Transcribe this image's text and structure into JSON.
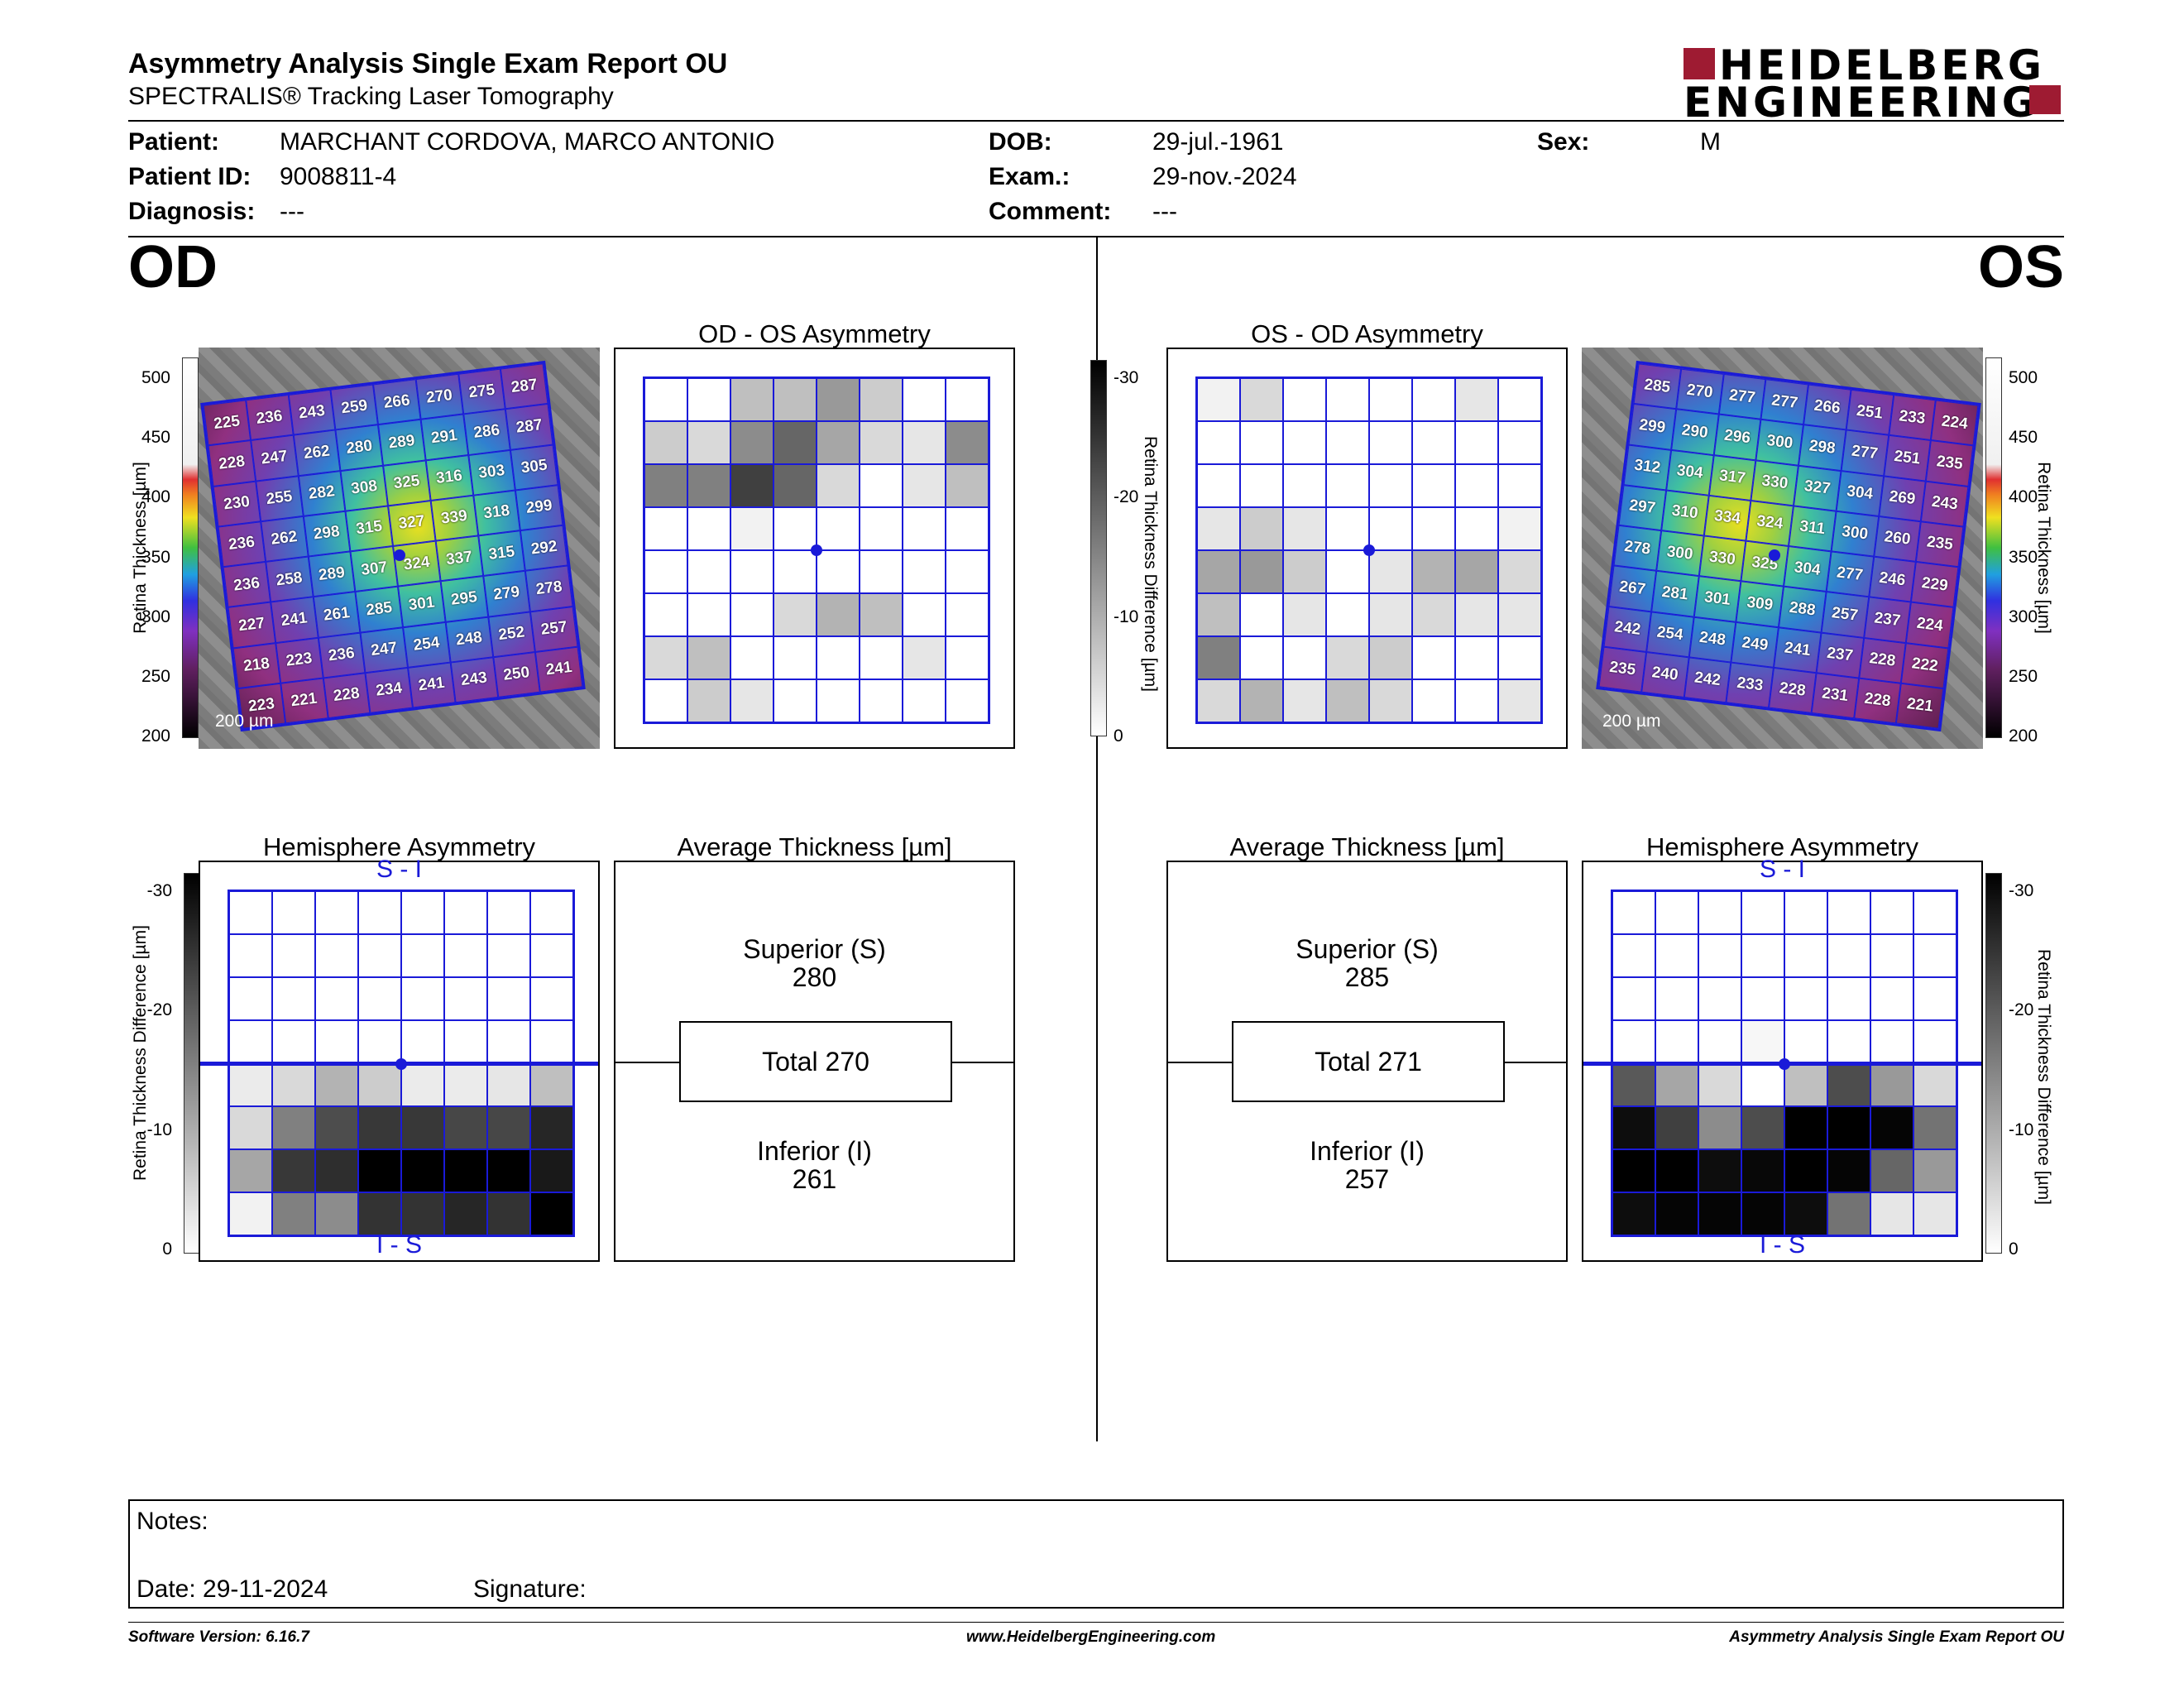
{
  "header": {
    "title": "Asymmetry Analysis Single Exam Report OU",
    "subtitle": "SPECTRALIS® Tracking Laser Tomography",
    "logo_line1": "HEIDELBERG",
    "logo_line2": "ENGINEERING",
    "brand_color": "#9e1b32"
  },
  "patient": {
    "patient_label": "Patient:",
    "patient_value": "MARCHANT CORDOVA, MARCO ANTONIO",
    "id_label": "Patient ID:",
    "id_value": "9008811-4",
    "diagnosis_label": "Diagnosis:",
    "diagnosis_value": "---",
    "dob_label": "DOB:",
    "dob_value": "29-jul.-1961",
    "exam_label": "Exam.:",
    "exam_value": "29-nov.-2024",
    "comment_label": "Comment:",
    "comment_value": "---",
    "sex_label": "Sex:",
    "sex_value": "M"
  },
  "od": {
    "eye_label": "OD",
    "asym_title": "OD - OS Asymmetry",
    "hemi_title": "Hemisphere Asymmetry",
    "avg_title": "Average Thickness [µm]",
    "scale_label": "200 µm",
    "thickness_axis_label": "Retina Thickness [µm]",
    "diff_axis_label": "Retina Thickness Difference [µm]",
    "thickness_ticks": [
      "500",
      "450",
      "400",
      "350",
      "300",
      "250",
      "200"
    ],
    "diff_ticks": [
      "-30",
      "-20",
      "-10",
      "0"
    ],
    "hemi_top": "S - I",
    "hemi_bottom": "I - S",
    "superior_label": "Superior (S)",
    "superior_value": "280",
    "total_label": "Total 270",
    "inferior_label": "Inferior (I)",
    "inferior_value": "261",
    "thickness_grid": [
      [
        "225",
        "236",
        "243",
        "259",
        "266",
        "270",
        "275",
        "287"
      ],
      [
        "228",
        "247",
        "262",
        "280",
        "289",
        "291",
        "286",
        "287"
      ],
      [
        "230",
        "255",
        "282",
        "308",
        "325",
        "316",
        "303",
        "305"
      ],
      [
        "236",
        "262",
        "298",
        "315",
        "327",
        "339",
        "318",
        "299"
      ],
      [
        "236",
        "258",
        "289",
        "307",
        "324",
        "337",
        "315",
        "292"
      ],
      [
        "227",
        "241",
        "261",
        "285",
        "301",
        "295",
        "279",
        "278"
      ],
      [
        "218",
        "223",
        "236",
        "247",
        "254",
        "248",
        "252",
        "257"
      ],
      [
        "223",
        "221",
        "228",
        "234",
        "241",
        "243",
        "250",
        "241"
      ]
    ],
    "asym_shades": [
      [
        0,
        0,
        0.25,
        0.25,
        0.4,
        0.2,
        0,
        0
      ],
      [
        0.2,
        0.15,
        0.45,
        0.6,
        0.35,
        0.15,
        0.1,
        0.45
      ],
      [
        0.5,
        0.5,
        0.75,
        0.6,
        0.15,
        0,
        0.1,
        0.25
      ],
      [
        0,
        0,
        0.05,
        0,
        0,
        0,
        0,
        0
      ],
      [
        0,
        0,
        0,
        0,
        0,
        0,
        0,
        0
      ],
      [
        0,
        0,
        0,
        0.15,
        0.3,
        0.25,
        0,
        0
      ],
      [
        0.15,
        0.25,
        0,
        0,
        0,
        0,
        0.1,
        0
      ],
      [
        0,
        0.2,
        0.1,
        0,
        0,
        0,
        0,
        0
      ]
    ],
    "hemi_shades": [
      [
        0,
        0,
        0,
        0,
        0,
        0,
        0,
        0
      ],
      [
        0,
        0,
        0,
        0,
        0,
        0,
        0,
        0
      ],
      [
        0,
        0,
        0,
        0,
        0,
        0,
        0,
        0
      ],
      [
        0,
        0,
        0,
        0,
        0,
        0,
        0,
        0
      ],
      [
        0.08,
        0.15,
        0.3,
        0.2,
        0.08,
        0.08,
        0.1,
        0.25
      ],
      [
        0.15,
        0.5,
        0.7,
        0.78,
        0.78,
        0.72,
        0.72,
        0.85
      ],
      [
        0.35,
        0.78,
        0.82,
        1,
        1,
        1,
        1,
        0.9
      ],
      [
        0.05,
        0.5,
        0.45,
        0.8,
        0.8,
        0.85,
        0.8,
        1
      ]
    ]
  },
  "os": {
    "eye_label": "OS",
    "asym_title": "OS - OD Asymmetry",
    "hemi_title": "Hemisphere Asymmetry",
    "avg_title": "Average Thickness [µm]",
    "scale_label": "200 µm",
    "thickness_axis_label": "Retina Thickness [µm]",
    "diff_axis_label": "Retina Thickness Difference [µm]",
    "thickness_ticks": [
      "500",
      "450",
      "400",
      "350",
      "300",
      "250",
      "200"
    ],
    "diff_ticks": [
      "-30",
      "-20",
      "-10",
      "0"
    ],
    "hemi_top": "S - I",
    "hemi_bottom": "I - S",
    "superior_label": "Superior (S)",
    "superior_value": "285",
    "total_label": "Total 271",
    "inferior_label": "Inferior (I)",
    "inferior_value": "257",
    "thickness_grid": [
      [
        "285",
        "270",
        "277",
        "277",
        "266",
        "251",
        "233",
        "224"
      ],
      [
        "299",
        "290",
        "296",
        "300",
        "298",
        "277",
        "251",
        "235"
      ],
      [
        "312",
        "304",
        "317",
        "330",
        "327",
        "304",
        "269",
        "243"
      ],
      [
        "297",
        "310",
        "334",
        "324",
        "311",
        "300",
        "260",
        "235"
      ],
      [
        "278",
        "300",
        "330",
        "325",
        "304",
        "277",
        "246",
        "229"
      ],
      [
        "267",
        "281",
        "301",
        "309",
        "288",
        "257",
        "237",
        "224"
      ],
      [
        "242",
        "254",
        "248",
        "249",
        "241",
        "237",
        "228",
        "222"
      ],
      [
        "235",
        "240",
        "242",
        "233",
        "228",
        "231",
        "228",
        "221"
      ]
    ],
    "asym_shades": [
      [
        0.05,
        0.15,
        0,
        0,
        0,
        0,
        0.1,
        0
      ],
      [
        0,
        0,
        0,
        0,
        0,
        0,
        0,
        0
      ],
      [
        0,
        0,
        0,
        0,
        0,
        0,
        0,
        0
      ],
      [
        0.1,
        0.2,
        0.1,
        0,
        0,
        0,
        0,
        0.05
      ],
      [
        0.35,
        0.4,
        0.2,
        0,
        0.1,
        0.3,
        0.35,
        0.15
      ],
      [
        0.25,
        0,
        0.1,
        0,
        0.1,
        0.15,
        0.1,
        0.1
      ],
      [
        0.5,
        0,
        0,
        0.15,
        0.2,
        0,
        0,
        0
      ],
      [
        0.15,
        0.3,
        0.1,
        0.25,
        0.15,
        0,
        0,
        0.1
      ]
    ],
    "hemi_shades": [
      [
        0,
        0,
        0,
        0,
        0,
        0,
        0,
        0
      ],
      [
        0,
        0,
        0,
        0,
        0,
        0,
        0,
        0
      ],
      [
        0,
        0,
        0,
        0,
        0,
        0,
        0,
        0
      ],
      [
        0,
        0,
        0,
        0.03,
        0,
        0,
        0,
        0
      ],
      [
        0.65,
        0.35,
        0.15,
        0,
        0.25,
        0.7,
        0.4,
        0.15
      ],
      [
        0.95,
        0.75,
        0.45,
        0.7,
        1,
        1,
        0.98,
        0.55
      ],
      [
        1,
        1,
        0.95,
        0.97,
        1,
        0.98,
        0.6,
        0.4
      ],
      [
        0.95,
        0.98,
        0.98,
        0.98,
        0.95,
        0.55,
        0.1,
        0.1
      ]
    ]
  },
  "notes": {
    "notes_label": "Notes:",
    "date_label": "Date: 29-11-2024",
    "signature_label": "Signature:"
  },
  "footer": {
    "software": "Software Version: 6.16.7",
    "website": "www.HeidelbergEngineering.com",
    "report": "Asymmetry Analysis Single Exam Report OU"
  }
}
